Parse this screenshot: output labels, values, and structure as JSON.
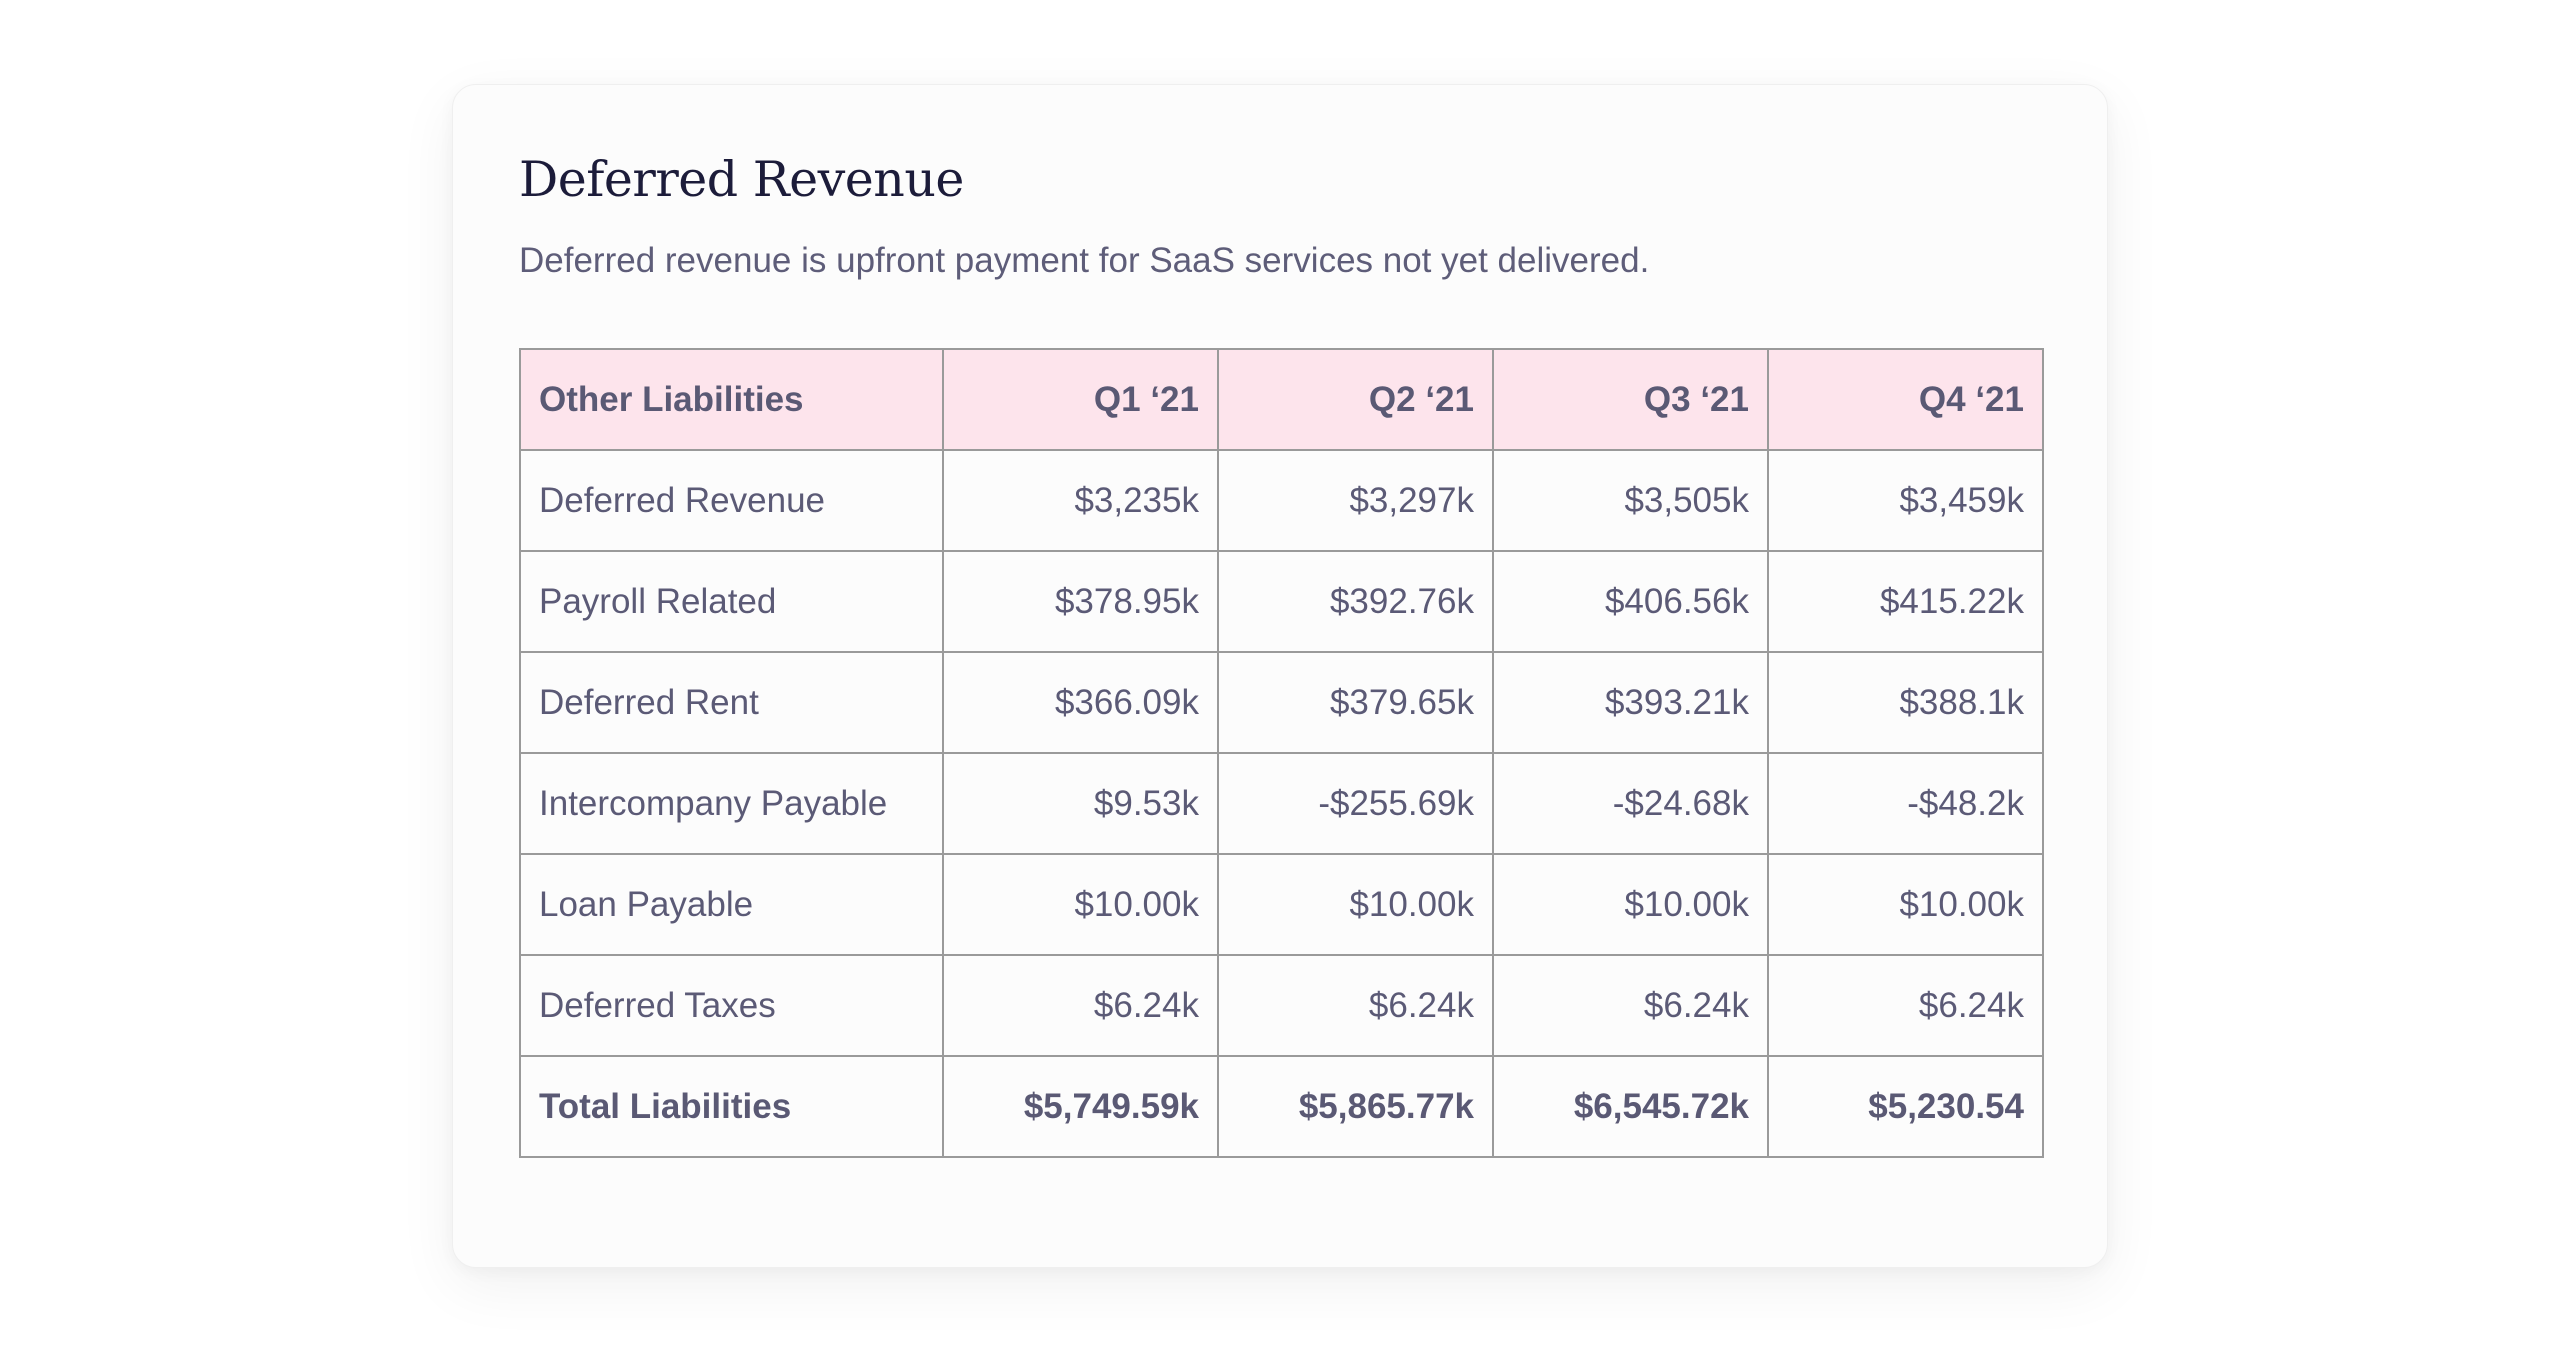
{
  "card": {
    "title": "Deferred Revenue",
    "subtitle": "Deferred revenue is upfront payment for SaaS services not yet delivered."
  },
  "table": {
    "header": [
      "Other Liabilities",
      "Q1 ‘21",
      "Q2 ‘21",
      "Q3 ‘21",
      "Q4 ‘21"
    ],
    "rows": [
      {
        "label": "Deferred Revenue",
        "values": [
          "$3,235k",
          "$3,297k",
          "$3,505k",
          "$3,459k"
        ]
      },
      {
        "label": "Payroll Related",
        "values": [
          "$378.95k",
          "$392.76k",
          "$406.56k",
          "$415.22k"
        ]
      },
      {
        "label": "Deferred Rent",
        "values": [
          "$366.09k",
          "$379.65k",
          "$393.21k",
          "$388.1k"
        ]
      },
      {
        "label": "Intercompany Payable",
        "values": [
          "$9.53k",
          "-$255.69k",
          "-$24.68k",
          "-$48.2k"
        ]
      },
      {
        "label": "Loan Payable",
        "values": [
          "$10.00k",
          "$10.00k",
          "$10.00k",
          "$10.00k"
        ]
      },
      {
        "label": "Deferred Taxes",
        "values": [
          "$6.24k",
          "$6.24k",
          "$6.24k",
          "$6.24k"
        ]
      }
    ],
    "total": {
      "label": "Total Liabilities",
      "values": [
        "$5,749.59k",
        "$5,865.77k",
        "$6,545.72k",
        "$5,230.54"
      ]
    }
  },
  "colors": {
    "header_background": "#fde4ec",
    "title_text": "#1c1c3a",
    "body_text": "#5b5a76",
    "grid_line": "#9a9a9a"
  }
}
